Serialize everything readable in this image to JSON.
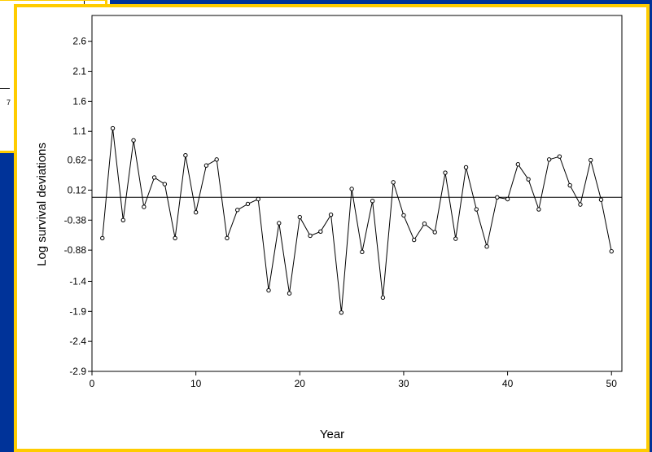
{
  "fragment": {
    "label": "7"
  },
  "chart_data": {
    "type": "line",
    "xlabel": "Year",
    "ylabel": "Log survival deviations",
    "xlim": [
      0,
      51
    ],
    "ylim": [
      -2.9,
      2.9
    ],
    "x_ticks": [
      0,
      10,
      20,
      30,
      40,
      50
    ],
    "y_ticks": [
      2.6,
      2.1,
      1.6,
      1.1,
      0.62,
      0.12,
      -0.38,
      -0.88,
      -1.4,
      -1.9,
      -2.4,
      -2.9
    ],
    "reference_line_y": 0,
    "grid": false,
    "markers": "open-circle",
    "x": [
      1,
      2,
      3,
      4,
      5,
      6,
      7,
      8,
      9,
      10,
      11,
      12,
      13,
      14,
      15,
      16,
      17,
      18,
      19,
      20,
      21,
      22,
      23,
      24,
      25,
      26,
      27,
      28,
      29,
      30,
      31,
      32,
      33,
      34,
      35,
      36,
      37,
      38,
      39,
      40,
      41,
      42,
      43,
      44,
      45,
      46,
      47,
      48,
      49,
      50
    ],
    "values": [
      -0.68,
      1.15,
      -0.38,
      0.95,
      -0.16,
      0.33,
      0.22,
      -0.68,
      0.7,
      -0.25,
      0.53,
      0.63,
      -0.68,
      -0.21,
      -0.11,
      -0.03,
      -1.55,
      -0.43,
      -1.6,
      -0.33,
      -0.64,
      -0.57,
      -0.29,
      -1.92,
      0.14,
      -0.91,
      -0.06,
      -1.67,
      0.25,
      -0.3,
      -0.71,
      -0.44,
      -0.58,
      0.41,
      -0.69,
      0.5,
      -0.2,
      -0.82,
      0.0,
      -0.03,
      0.55,
      0.3,
      -0.2,
      0.63,
      0.68,
      0.2,
      -0.12,
      0.62,
      -0.04,
      -0.9
    ]
  }
}
